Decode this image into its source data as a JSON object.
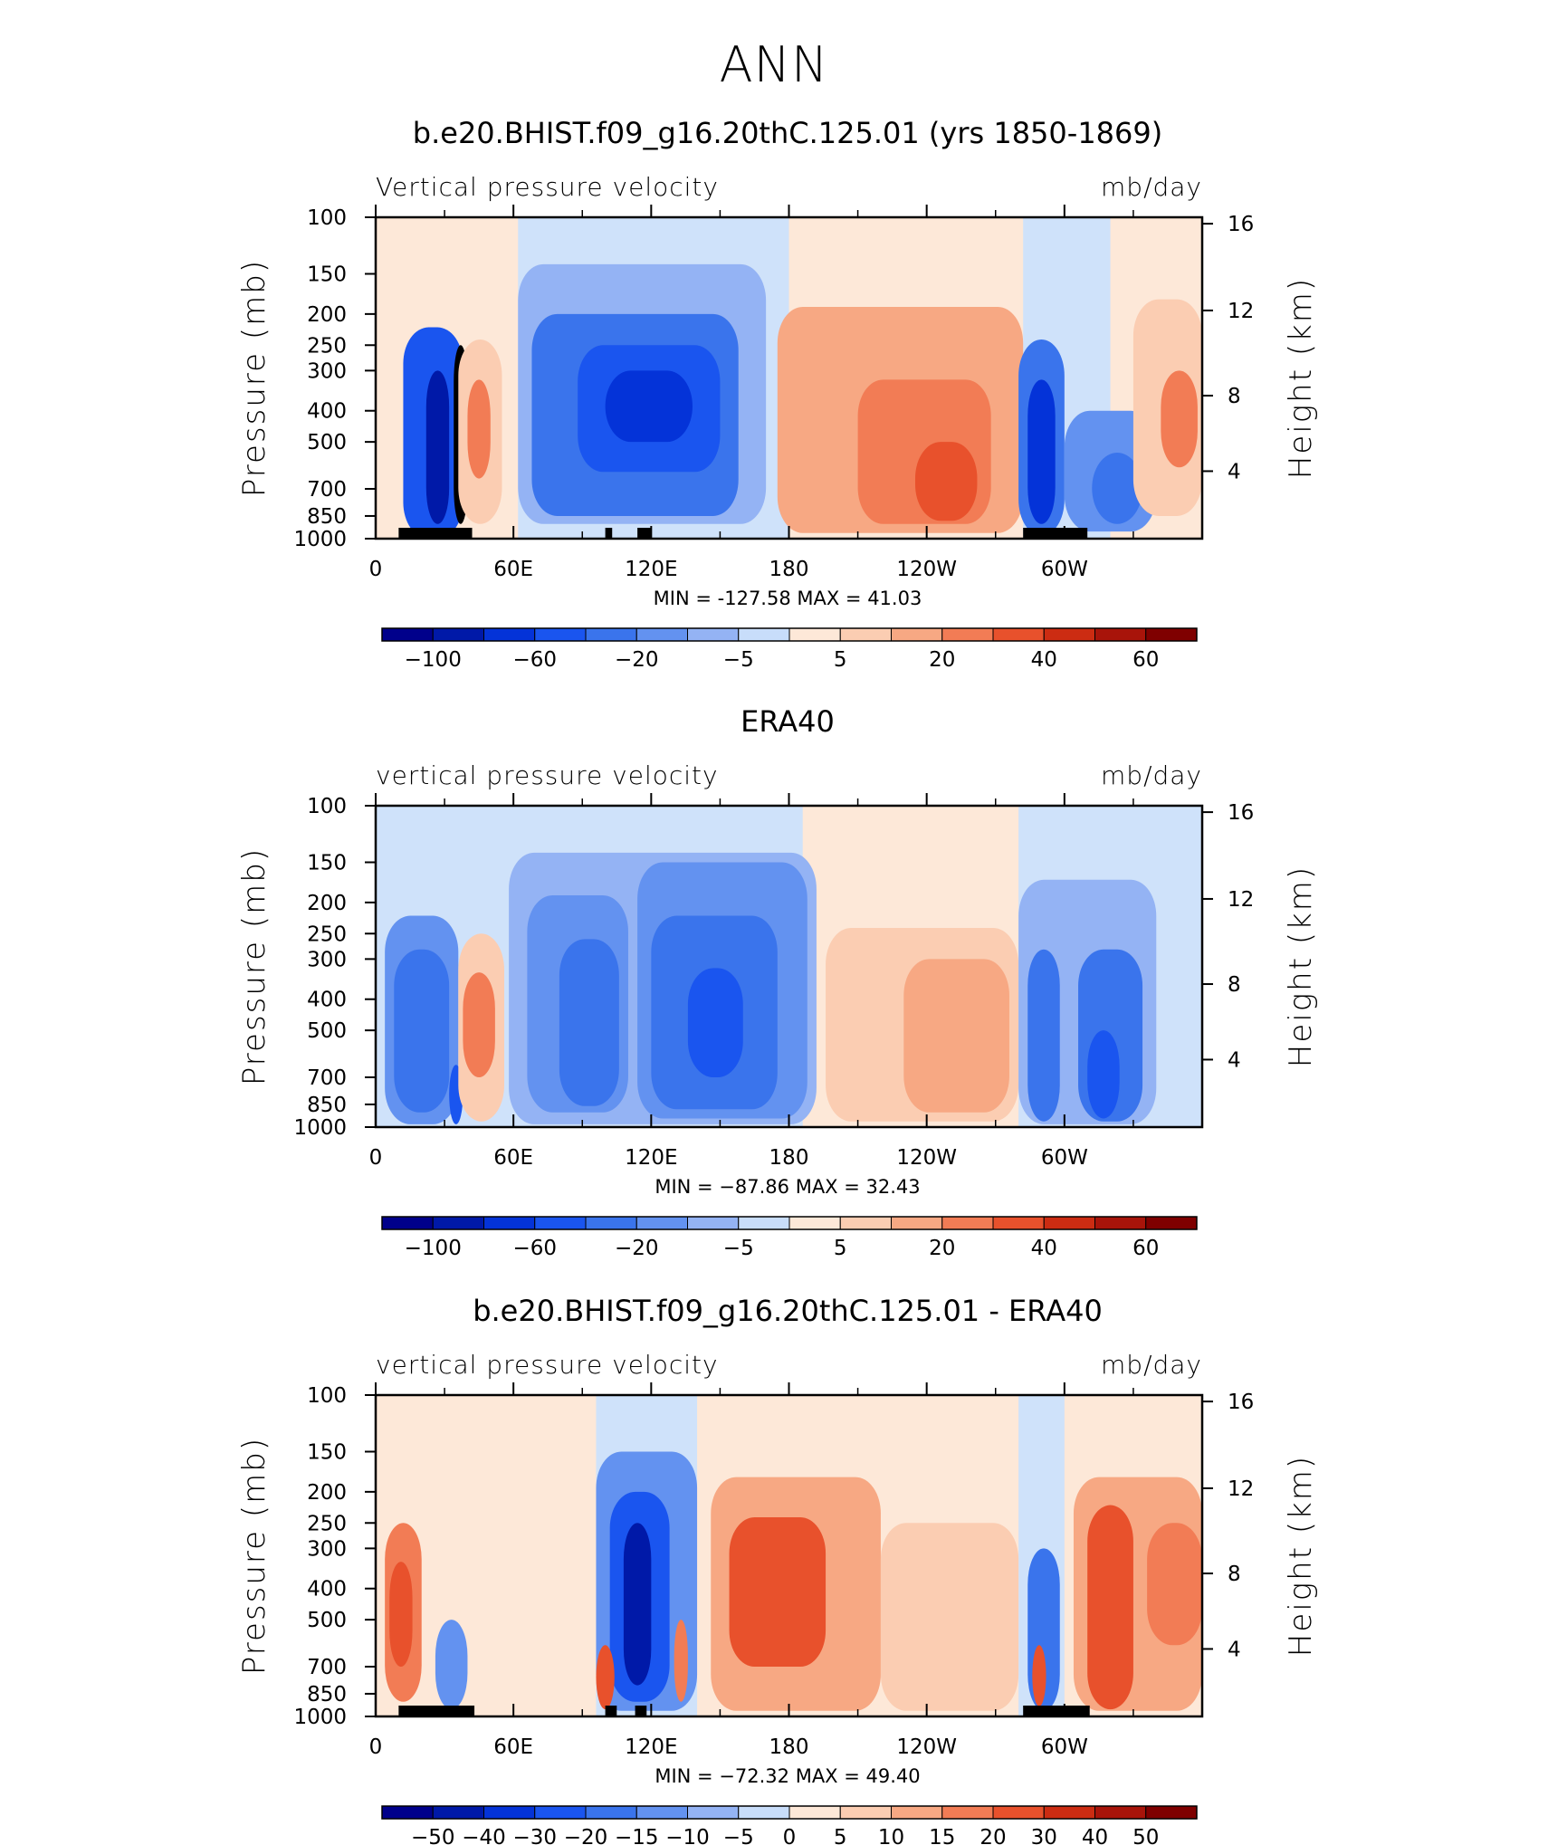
{
  "page": {
    "title": "ANN"
  },
  "colors": {
    "panel1": [
      "#00008b",
      "#0019a8",
      "#0433d8",
      "#1a55ef",
      "#3a74ec",
      "#6392f0",
      "#94b3f4",
      "#c8ddfa",
      "#fde8d8",
      "#fbcdb2",
      "#f7a883",
      "#f27c55",
      "#e8512c",
      "#cc2c12",
      "#a8140a",
      "#7f0000"
    ],
    "diff": [
      "#00008b",
      "#0019a8",
      "#0433d8",
      "#1a55ef",
      "#3a74ec",
      "#6392f0",
      "#94b3f4",
      "#c8ddfa",
      "#fde8d8",
      "#fbcdb2",
      "#f7a883",
      "#f27c55",
      "#e8512c",
      "#cc2c12",
      "#a8140a",
      "#7f0000"
    ]
  },
  "chart_data": [
    {
      "type": "heatmap",
      "title": "b.e20.BHIST.f09_g16.20thC.125.01 (yrs 1850-1869)",
      "left_label": "Vertical pressure velocity",
      "right_label": "mb/day",
      "ylabel": "Pressure (mb)",
      "y2label": "Height (km)",
      "y_axis_scale": "log (pressure)",
      "y_ticks": [
        "100",
        "150",
        "200",
        "250",
        "300",
        "400",
        "500",
        "700",
        "850",
        "1000"
      ],
      "y2_ticks": [
        "16",
        "12",
        "8",
        "4"
      ],
      "x_ticks": [
        "0",
        "60E",
        "120E",
        "180",
        "120W",
        "60W"
      ],
      "xlim": [
        0,
        360
      ],
      "ylim_mb": [
        1000,
        100
      ],
      "stats": "MIN = -127.58   MAX =   41.03",
      "min": -127.58,
      "max": 41.03,
      "colorbar_labels": [
        "−100",
        "−60",
        "−20",
        "−5",
        "5",
        "20",
        "40",
        "60"
      ],
      "colorbar_bins": 16,
      "regions": [
        {
          "lon": [
            12,
            38
          ],
          "p": [
            220,
            1000
          ],
          "level": 3
        },
        {
          "lon": [
            22,
            32
          ],
          "p": [
            300,
            900
          ],
          "level": 1
        },
        {
          "lon": [
            34,
            40
          ],
          "p": [
            250,
            900
          ],
          "level": -2
        },
        {
          "lon": [
            36,
            55
          ],
          "p": [
            240,
            900
          ],
          "level": 9
        },
        {
          "lon": [
            40,
            50
          ],
          "p": [
            320,
            650
          ],
          "level": 11
        },
        {
          "lon": [
            62,
            170
          ],
          "p": [
            140,
            900
          ],
          "level": 6
        },
        {
          "lon": [
            68,
            158
          ],
          "p": [
            200,
            850
          ],
          "level": 4
        },
        {
          "lon": [
            88,
            150
          ],
          "p": [
            250,
            620
          ],
          "level": 3
        },
        {
          "lon": [
            100,
            138
          ],
          "p": [
            300,
            500
          ],
          "level": 2
        },
        {
          "lon": [
            175,
            282
          ],
          "p": [
            190,
            960
          ],
          "level": 10
        },
        {
          "lon": [
            210,
            268
          ],
          "p": [
            320,
            900
          ],
          "level": 11
        },
        {
          "lon": [
            235,
            262
          ],
          "p": [
            500,
            880
          ],
          "level": 12
        },
        {
          "lon": [
            280,
            300
          ],
          "p": [
            240,
            980
          ],
          "level": 4
        },
        {
          "lon": [
            284,
            296
          ],
          "p": [
            320,
            900
          ],
          "level": 2
        },
        {
          "lon": [
            300,
            340
          ],
          "p": [
            400,
            950
          ],
          "level": 5
        },
        {
          "lon": [
            312,
            334
          ],
          "p": [
            540,
            900
          ],
          "level": 4
        },
        {
          "lon": [
            330,
            360
          ],
          "p": [
            180,
            850
          ],
          "level": 9
        },
        {
          "lon": [
            342,
            358
          ],
          "p": [
            300,
            600
          ],
          "level": 11
        }
      ],
      "terrain": [
        [
          10,
          42
        ],
        [
          100,
          103
        ],
        [
          114,
          120
        ],
        [
          282,
          310
        ]
      ]
    },
    {
      "type": "heatmap",
      "title": "ERA40",
      "left_label": "vertical pressure velocity",
      "right_label": "mb/day",
      "ylabel": "Pressure (mb)",
      "y2label": "Height (km)",
      "y_axis_scale": "log (pressure)",
      "y_ticks": [
        "100",
        "150",
        "200",
        "250",
        "300",
        "400",
        "500",
        "700",
        "850",
        "1000"
      ],
      "y2_ticks": [
        "16",
        "12",
        "8",
        "4"
      ],
      "x_ticks": [
        "0",
        "60E",
        "120E",
        "180",
        "120W",
        "60W"
      ],
      "xlim": [
        0,
        360
      ],
      "ylim_mb": [
        1000,
        100
      ],
      "stats": "MIN = −87.86   MAX =   32.43",
      "min": -87.86,
      "max": 32.43,
      "colorbar_labels": [
        "−100",
        "−60",
        "−20",
        "−5",
        "5",
        "20",
        "40",
        "60"
      ],
      "colorbar_bins": 16,
      "regions": [
        {
          "lon": [
            4,
            36
          ],
          "p": [
            220,
            980
          ],
          "level": 5
        },
        {
          "lon": [
            8,
            32
          ],
          "p": [
            280,
            900
          ],
          "level": 4
        },
        {
          "lon": [
            32,
            38
          ],
          "p": [
            640,
            980
          ],
          "level": 3
        },
        {
          "lon": [
            36,
            56
          ],
          "p": [
            250,
            960
          ],
          "level": 9
        },
        {
          "lon": [
            38,
            52
          ],
          "p": [
            330,
            700
          ],
          "level": 11
        },
        {
          "lon": [
            58,
            192
          ],
          "p": [
            140,
            980
          ],
          "level": 6
        },
        {
          "lon": [
            66,
            110
          ],
          "p": [
            190,
            900
          ],
          "level": 5
        },
        {
          "lon": [
            80,
            106
          ],
          "p": [
            260,
            860
          ],
          "level": 4
        },
        {
          "lon": [
            114,
            188
          ],
          "p": [
            150,
            940
          ],
          "level": 5
        },
        {
          "lon": [
            120,
            175
          ],
          "p": [
            220,
            880
          ],
          "level": 4
        },
        {
          "lon": [
            136,
            160
          ],
          "p": [
            320,
            700
          ],
          "level": 3
        },
        {
          "lon": [
            196,
            280
          ],
          "p": [
            240,
            960
          ],
          "level": 9
        },
        {
          "lon": [
            230,
            276
          ],
          "p": [
            300,
            900
          ],
          "level": 10
        },
        {
          "lon": [
            280,
            340
          ],
          "p": [
            170,
            980
          ],
          "level": 6
        },
        {
          "lon": [
            284,
            298
          ],
          "p": [
            280,
            960
          ],
          "level": 4
        },
        {
          "lon": [
            306,
            334
          ],
          "p": [
            280,
            960
          ],
          "level": 4
        },
        {
          "lon": [
            310,
            324
          ],
          "p": [
            500,
            940
          ],
          "level": 3
        }
      ],
      "terrain": []
    },
    {
      "type": "heatmap",
      "title": "b.e20.BHIST.f09_g16.20thC.125.01 - ERA40",
      "left_label": "vertical pressure velocity",
      "right_label": "mb/day",
      "ylabel": "Pressure (mb)",
      "y2label": "Height (km)",
      "y_axis_scale": "log (pressure)",
      "y_ticks": [
        "100",
        "150",
        "200",
        "250",
        "300",
        "400",
        "500",
        "700",
        "850",
        "1000"
      ],
      "y2_ticks": [
        "16",
        "12",
        "8",
        "4"
      ],
      "x_ticks": [
        "0",
        "60E",
        "120E",
        "180",
        "120W",
        "60W"
      ],
      "xlim": [
        0,
        360
      ],
      "ylim_mb": [
        1000,
        100
      ],
      "stats": "MIN = −72.32   MAX =   49.40",
      "min": -72.32,
      "max": 49.4,
      "colorbar_labels": [
        "−50",
        "−40",
        "−30",
        "−20",
        "−15",
        "−10",
        "−5",
        "0",
        "5",
        "10",
        "15",
        "20",
        "30",
        "40",
        "50"
      ],
      "colorbar_bins": 16,
      "regions": [
        {
          "lon": [
            4,
            20
          ],
          "p": [
            250,
            900
          ],
          "level": 11
        },
        {
          "lon": [
            6,
            16
          ],
          "p": [
            330,
            700
          ],
          "level": 12
        },
        {
          "lon": [
            26,
            40
          ],
          "p": [
            500,
            950
          ],
          "level": 5
        },
        {
          "lon": [
            96,
            140
          ],
          "p": [
            150,
            960
          ],
          "level": 5
        },
        {
          "lon": [
            102,
            128
          ],
          "p": [
            200,
            900
          ],
          "level": 3
        },
        {
          "lon": [
            108,
            120
          ],
          "p": [
            250,
            800
          ],
          "level": 1
        },
        {
          "lon": [
            96,
            104
          ],
          "p": [
            600,
            950
          ],
          "level": 12
        },
        {
          "lon": [
            130,
            136
          ],
          "p": [
            500,
            900
          ],
          "level": 11
        },
        {
          "lon": [
            146,
            220
          ],
          "p": [
            180,
            960
          ],
          "level": 10
        },
        {
          "lon": [
            154,
            196
          ],
          "p": [
            240,
            700
          ],
          "level": 12
        },
        {
          "lon": [
            220,
            280
          ],
          "p": [
            250,
            960
          ],
          "level": 9
        },
        {
          "lon": [
            284,
            298
          ],
          "p": [
            300,
            960
          ],
          "level": 4
        },
        {
          "lon": [
            286,
            292
          ],
          "p": [
            600,
            930
          ],
          "level": 12
        },
        {
          "lon": [
            304,
            360
          ],
          "p": [
            180,
            960
          ],
          "level": 10
        },
        {
          "lon": [
            310,
            330
          ],
          "p": [
            220,
            950
          ],
          "level": 12
        },
        {
          "lon": [
            336,
            360
          ],
          "p": [
            250,
            600
          ],
          "level": 11
        }
      ],
      "terrain": [
        [
          10,
          43
        ],
        [
          100,
          105
        ],
        [
          113,
          118
        ],
        [
          282,
          311
        ]
      ]
    }
  ]
}
